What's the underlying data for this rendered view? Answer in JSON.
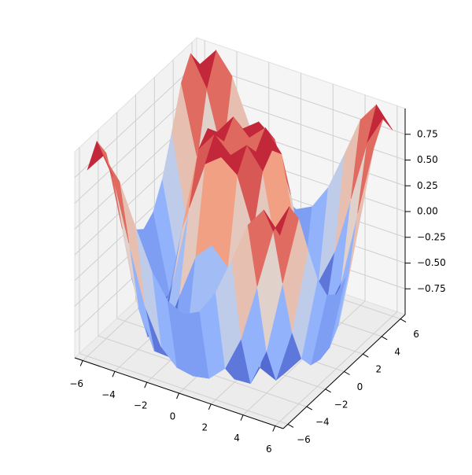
{
  "chart_data": {
    "type": "surface",
    "colormap": "coolwarm",
    "x": [
      -6,
      -5,
      -4,
      -3,
      -2,
      -1,
      0,
      1,
      2,
      3,
      4,
      5,
      6
    ],
    "y": [
      -6,
      -5,
      -4,
      -3,
      -2,
      -1,
      0,
      1,
      2,
      3,
      4,
      5,
      6
    ],
    "z": [
      [
        0.81,
        1.0,
        0.8,
        0.41,
        0.04,
        -0.2,
        -0.28,
        -0.2,
        0.04,
        0.41,
        0.8,
        1.0,
        0.81
      ],
      [
        1.0,
        0.71,
        0.12,
        -0.44,
        -0.78,
        -0.93,
        -0.96,
        -0.93,
        -0.78,
        -0.44,
        0.12,
        0.71,
        1.0
      ],
      [
        0.8,
        0.12,
        -0.59,
        -0.96,
        -0.97,
        -0.83,
        -0.76,
        -0.83,
        -0.97,
        -0.96,
        -0.59,
        0.12,
        0.8
      ],
      [
        0.41,
        -0.44,
        -0.96,
        -0.89,
        -0.45,
        -0.02,
        0.14,
        -0.02,
        -0.45,
        -0.89,
        -0.96,
        -0.44,
        0.41
      ],
      [
        0.04,
        -0.78,
        -0.97,
        -0.45,
        0.31,
        0.79,
        0.91,
        0.79,
        0.31,
        -0.45,
        -0.97,
        -0.78,
        0.04
      ],
      [
        -0.2,
        -0.93,
        -0.83,
        -0.02,
        0.79,
        0.99,
        0.84,
        0.99,
        0.79,
        -0.02,
        -0.83,
        -0.93,
        -0.2
      ],
      [
        -0.28,
        -0.96,
        -0.76,
        0.14,
        0.91,
        0.84,
        0,
        0.84,
        0.91,
        0.14,
        -0.76,
        -0.96,
        -0.28
      ],
      [
        -0.2,
        -0.93,
        -0.83,
        -0.02,
        0.79,
        0.99,
        0.84,
        0.99,
        0.79,
        -0.02,
        -0.83,
        -0.93,
        -0.2
      ],
      [
        0.04,
        -0.78,
        -0.97,
        -0.45,
        0.31,
        0.79,
        0.91,
        0.79,
        0.31,
        -0.45,
        -0.97,
        -0.78,
        0.04
      ],
      [
        0.41,
        -0.44,
        -0.96,
        -0.89,
        -0.45,
        -0.02,
        0.14,
        -0.02,
        -0.45,
        -0.89,
        -0.96,
        -0.44,
        0.41
      ],
      [
        0.8,
        0.12,
        -0.59,
        -0.96,
        -0.97,
        -0.83,
        -0.76,
        -0.83,
        -0.97,
        -0.96,
        -0.59,
        0.12,
        0.8
      ],
      [
        1.0,
        0.71,
        0.12,
        -0.44,
        -0.78,
        -0.93,
        -0.96,
        -0.93,
        -0.78,
        -0.44,
        0.12,
        0.71,
        1.0
      ],
      [
        0.81,
        1.0,
        0.8,
        0.41,
        0.04,
        -0.2,
        -0.28,
        -0.2,
        0.04,
        0.41,
        0.8,
        1.0,
        0.81
      ]
    ],
    "xlim": [
      -6.5,
      6.5
    ],
    "ylim": [
      -6.5,
      6.5
    ],
    "zlim": [
      -1,
      1
    ],
    "xticks": [
      {
        "value": -6,
        "label": "−6"
      },
      {
        "value": -4,
        "label": "−4"
      },
      {
        "value": -2,
        "label": "−2"
      },
      0,
      2,
      4,
      6
    ],
    "yticks": [
      {
        "value": -6,
        "label": "−6"
      },
      {
        "value": -4,
        "label": "−4"
      },
      {
        "value": -2,
        "label": "−2"
      },
      0,
      2,
      4,
      6
    ],
    "zticks": [
      {
        "value": -0.75,
        "label": "−0.75"
      },
      {
        "value": -0.5,
        "label": "−0.50"
      },
      {
        "value": -0.25,
        "label": "−0.25"
      },
      {
        "value": 0,
        "label": "0.00"
      },
      0.25,
      {
        "value": 0.5,
        "label": "0.50"
      },
      0.75
    ],
    "grid": true
  }
}
